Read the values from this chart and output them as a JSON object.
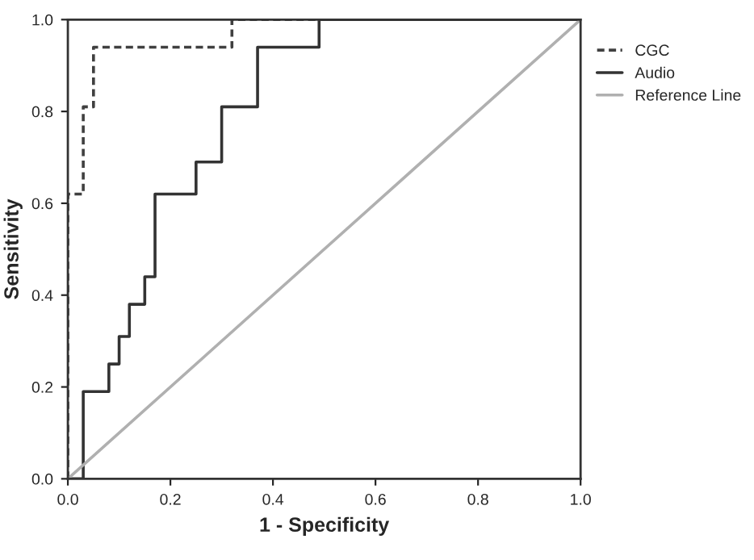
{
  "chart_data": {
    "type": "line",
    "xlabel": "1 - Specificity",
    "ylabel": "Sensitivity",
    "xlim": [
      0,
      1
    ],
    "ylim": [
      0,
      1
    ],
    "xticks": [
      {
        "value": 0,
        "label": "0.0"
      },
      {
        "value": 0.2,
        "label": "0.2"
      },
      {
        "value": 0.4,
        "label": "0.4"
      },
      {
        "value": 0.6,
        "label": "0.6"
      },
      {
        "value": 0.8,
        "label": "0.8"
      },
      {
        "value": 1,
        "label": "1.0"
      }
    ],
    "yticks": [
      {
        "value": 0,
        "label": "0.0"
      },
      {
        "value": 0.2,
        "label": "0.2"
      },
      {
        "value": 0.4,
        "label": "0.4"
      },
      {
        "value": 0.6,
        "label": "0.6"
      },
      {
        "value": 0.8,
        "label": "0.8"
      },
      {
        "value": 1,
        "label": "1.0"
      }
    ],
    "grid": false,
    "legend": "top right",
    "marker": "none",
    "series": [
      {
        "name": "CGC",
        "color": "#404040",
        "line_style": "dashed",
        "x": [
          0,
          0,
          0.03,
          0.03,
          0.05,
          0.05,
          0.32,
          0.32,
          1
        ],
        "values": [
          0,
          0.62,
          0.62,
          0.81,
          0.81,
          0.94,
          0.94,
          1,
          1
        ]
      },
      {
        "name": "Audio",
        "color": "#333333",
        "line_style": "solid",
        "x": [
          0,
          0.03,
          0.03,
          0.08,
          0.08,
          0.1,
          0.1,
          0.12,
          0.12,
          0.15,
          0.15,
          0.17,
          0.17,
          0.25,
          0.25,
          0.3,
          0.3,
          0.37,
          0.37,
          0.49,
          0.49,
          1
        ],
        "values": [
          0,
          0,
          0.19,
          0.19,
          0.25,
          0.25,
          0.31,
          0.31,
          0.38,
          0.38,
          0.44,
          0.44,
          0.62,
          0.62,
          0.69,
          0.69,
          0.81,
          0.81,
          0.94,
          0.94,
          1,
          1
        ]
      },
      {
        "name": "Reference Line",
        "color": "#b0b0b0",
        "line_style": "solid",
        "x": [
          0,
          1
        ],
        "values": [
          0,
          1
        ]
      }
    ]
  }
}
